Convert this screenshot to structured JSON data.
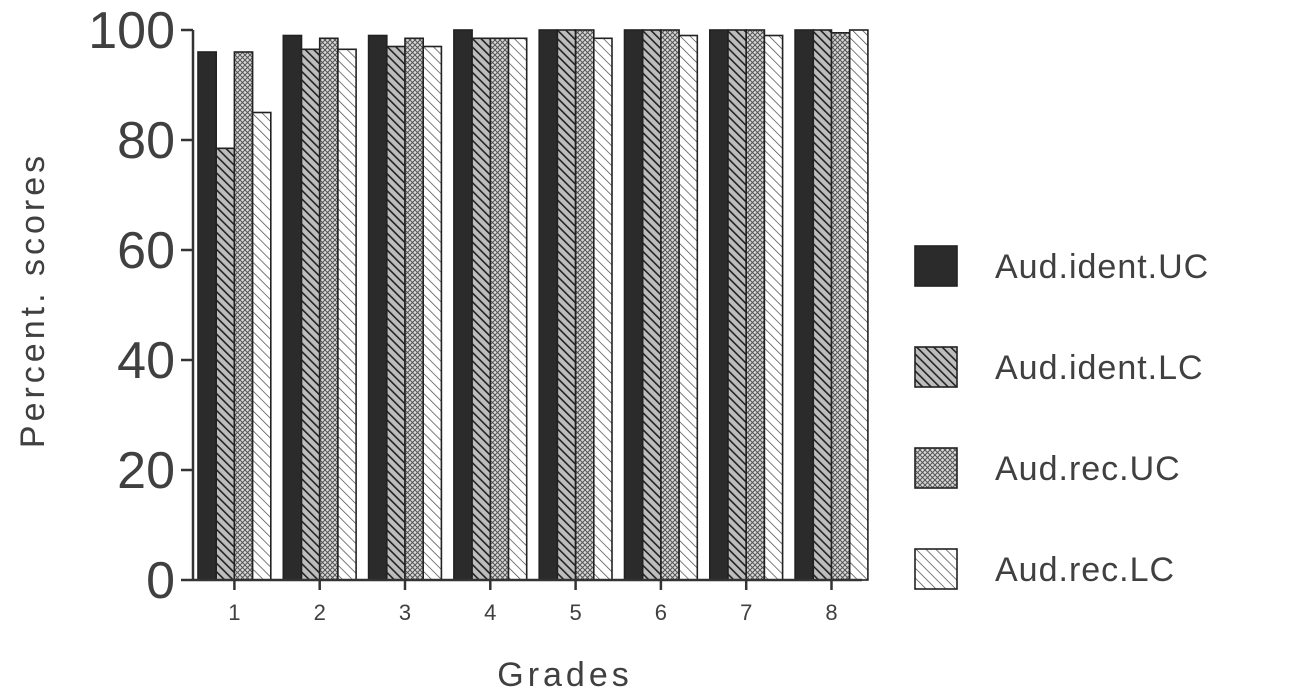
{
  "chart_data": {
    "type": "bar",
    "title": "",
    "xlabel": "Grades",
    "ylabel": "Percent. scores",
    "categories": [
      "1",
      "2",
      "3",
      "4",
      "5",
      "6",
      "7",
      "8"
    ],
    "ylim": [
      0,
      100
    ],
    "yticks": [
      "0",
      "20",
      "40",
      "60",
      "80",
      "100"
    ],
    "grid": false,
    "legend_position": "right",
    "series": [
      {
        "name": "Aud.ident.UC",
        "pattern": "solid",
        "values": [
          96,
          99,
          99,
          100,
          100,
          100,
          100,
          100
        ]
      },
      {
        "name": "Aud.ident.LC",
        "pattern": "dense-diagonal",
        "values": [
          78.5,
          96.5,
          97,
          98.5,
          100,
          100,
          100,
          100
        ]
      },
      {
        "name": "Aud.rec.UC",
        "pattern": "crosshatch",
        "values": [
          96,
          98.5,
          98.5,
          98.5,
          100,
          100,
          100,
          99.5
        ]
      },
      {
        "name": "Aud.rec.LC",
        "pattern": "light-diagonal",
        "values": [
          85,
          96.5,
          97,
          98.5,
          98.5,
          99,
          99,
          100
        ]
      }
    ],
    "colors": {
      "bar_dark": "#2b2b2b",
      "stroke": "#222222",
      "text": "#404040"
    }
  }
}
